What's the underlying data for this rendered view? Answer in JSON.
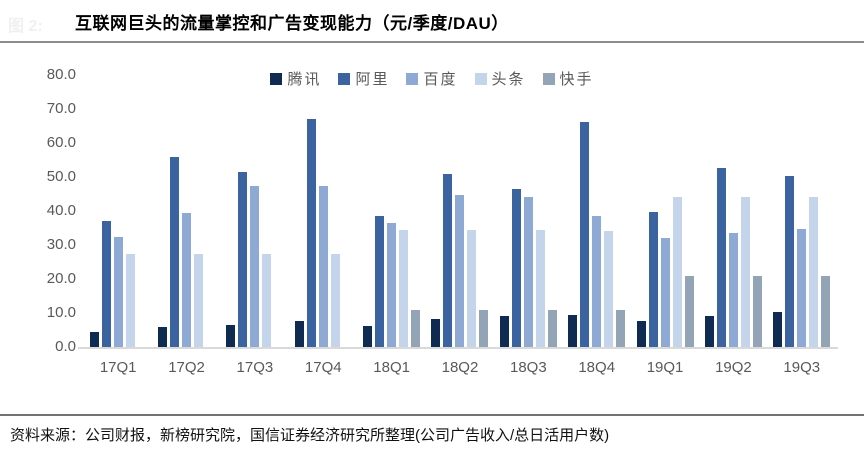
{
  "header": {
    "figure_label": "图 2:",
    "title": "互联网巨头的流量掌控和广告变现能力（元/季度/DAU）"
  },
  "footer": {
    "source": "资料来源：公司财报，新榜研究院，国信证券经济研究所整理(公司广告收入/总日活用户数)"
  },
  "colors": {
    "axis_text": "#595959",
    "axis_line": "#d9d9d9",
    "top_rule": "#8c8c8c",
    "bottom_rule": "#737373"
  },
  "chart_data": {
    "type": "bar",
    "title": "互联网巨头的流量掌控和广告变现能力（元/季度/DAU）",
    "xlabel": "",
    "ylabel": "",
    "ylim": [
      0,
      80
    ],
    "ytick_step": 10,
    "ytick_labels": [
      "80.0",
      "70.0",
      "60.0",
      "50.0",
      "40.0",
      "30.0",
      "20.0",
      "10.0",
      "0.0"
    ],
    "grid": false,
    "legend_position": "top-center",
    "categories": [
      "17Q1",
      "17Q2",
      "17Q3",
      "17Q4",
      "18Q1",
      "18Q2",
      "18Q3",
      "18Q4",
      "19Q1",
      "19Q2",
      "19Q3"
    ],
    "series": [
      {
        "name": "腾讯",
        "color": "#102b52",
        "values": [
          4.3,
          6.0,
          6.6,
          7.6,
          6.3,
          8.3,
          9.0,
          9.4,
          7.8,
          9.0,
          10.4
        ]
      },
      {
        "name": "阿里",
        "color": "#3a63a0",
        "values": [
          37.1,
          56.0,
          51.5,
          67.2,
          38.5,
          51.0,
          46.5,
          66.3,
          39.6,
          52.6,
          50.4
        ]
      },
      {
        "name": "百度",
        "color": "#8ea9d4",
        "values": [
          32.4,
          39.4,
          47.5,
          47.5,
          36.4,
          44.8,
          44.1,
          38.6,
          32.1,
          33.4,
          34.6
        ]
      },
      {
        "name": "头条",
        "color": "#c3d4eb",
        "values": [
          27.4,
          27.5,
          27.4,
          27.4,
          34.3,
          34.3,
          34.3,
          34.2,
          44.2,
          44.2,
          44.2
        ]
      },
      {
        "name": "快手",
        "color": "#93a4b7",
        "values": [
          null,
          null,
          null,
          null,
          11.0,
          11.0,
          11.0,
          11.0,
          20.8,
          20.8,
          20.8
        ]
      }
    ]
  }
}
